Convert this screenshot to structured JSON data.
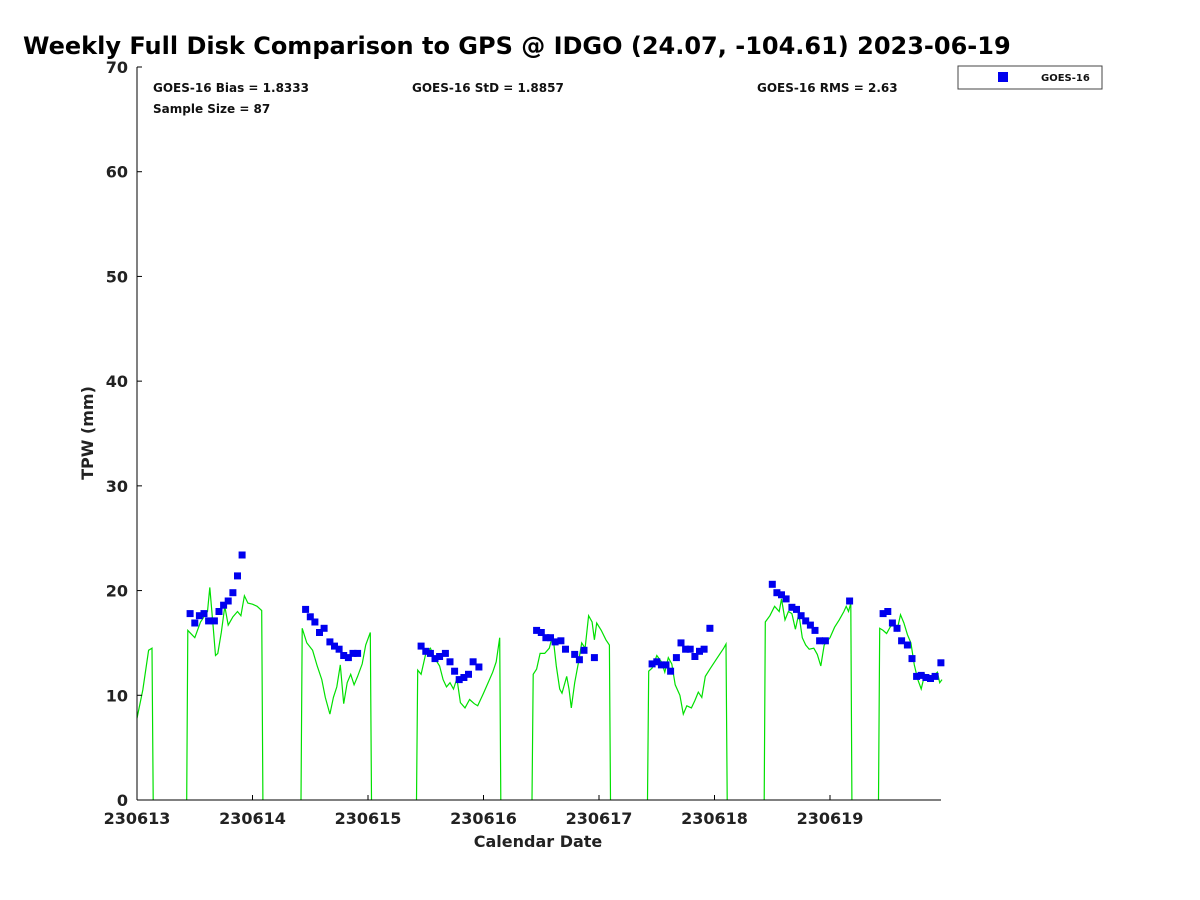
{
  "chart_data": {
    "type": "scatter",
    "title": "Weekly Full Disk Comparison to GPS @ IDGO (24.07, -104.61) 2023-06-19",
    "xlabel": "Calendar Date",
    "ylabel": "TPW (mm)",
    "xlim": [
      0,
      7
    ],
    "ylim": [
      0,
      70
    ],
    "y_ticks": [
      0,
      10,
      20,
      30,
      40,
      50,
      60,
      70
    ],
    "x_ticks": [
      {
        "value": 0,
        "label": "230613"
      },
      {
        "value": 1,
        "label": "230614"
      },
      {
        "value": 2,
        "label": "230615"
      },
      {
        "value": 3,
        "label": "230616"
      },
      {
        "value": 4,
        "label": "230617"
      },
      {
        "value": 5,
        "label": "230618"
      },
      {
        "value": 6,
        "label": "230619"
      }
    ],
    "stats": {
      "bias": "GOES-16 Bias = 1.8333",
      "std": "GOES-16 StD = 1.8857",
      "rms": "GOES-16 RMS = 2.63",
      "sample_size": "Sample Size = 87"
    },
    "legend": [
      {
        "name": "GOES-16",
        "color": "#0000ee",
        "marker": "square"
      }
    ],
    "legend_placement": "top-right outside plot",
    "series": [
      {
        "name": "GOES-16",
        "color": "#0000ee",
        "marker": "square",
        "points": [
          [
            0.46,
            17.8
          ],
          [
            0.5,
            16.9
          ],
          [
            0.54,
            17.6
          ],
          [
            0.58,
            17.8
          ],
          [
            0.62,
            17.1
          ],
          [
            0.67,
            17.1
          ],
          [
            0.71,
            18.0
          ],
          [
            0.75,
            18.6
          ],
          [
            0.79,
            19.0
          ],
          [
            0.83,
            19.8
          ],
          [
            0.87,
            21.4
          ],
          [
            0.91,
            23.4
          ],
          [
            1.46,
            18.2
          ],
          [
            1.5,
            17.5
          ],
          [
            1.54,
            17.0
          ],
          [
            1.58,
            16.0
          ],
          [
            1.62,
            16.4
          ],
          [
            1.67,
            15.1
          ],
          [
            1.71,
            14.7
          ],
          [
            1.75,
            14.4
          ],
          [
            1.79,
            13.8
          ],
          [
            1.83,
            13.6
          ],
          [
            1.87,
            14.0
          ],
          [
            1.91,
            14.0
          ],
          [
            2.46,
            14.7
          ],
          [
            2.5,
            14.2
          ],
          [
            2.54,
            14.0
          ],
          [
            2.58,
            13.5
          ],
          [
            2.62,
            13.7
          ],
          [
            2.67,
            14.0
          ],
          [
            2.71,
            13.2
          ],
          [
            2.75,
            12.3
          ],
          [
            2.79,
            11.5
          ],
          [
            2.83,
            11.7
          ],
          [
            2.87,
            12.0
          ],
          [
            2.91,
            13.2
          ],
          [
            2.96,
            12.7
          ],
          [
            3.46,
            16.2
          ],
          [
            3.5,
            16.0
          ],
          [
            3.54,
            15.5
          ],
          [
            3.58,
            15.5
          ],
          [
            3.62,
            15.1
          ],
          [
            3.67,
            15.2
          ],
          [
            3.71,
            14.4
          ],
          [
            3.79,
            13.9
          ],
          [
            3.83,
            13.4
          ],
          [
            3.87,
            14.3
          ],
          [
            3.96,
            13.6
          ],
          [
            4.46,
            13.0
          ],
          [
            4.5,
            13.2
          ],
          [
            4.54,
            12.9
          ],
          [
            4.58,
            12.9
          ],
          [
            4.62,
            12.3
          ],
          [
            4.67,
            13.6
          ],
          [
            4.71,
            15.0
          ],
          [
            4.75,
            14.4
          ],
          [
            4.79,
            14.4
          ],
          [
            4.83,
            13.7
          ],
          [
            4.87,
            14.2
          ],
          [
            4.91,
            14.4
          ],
          [
            4.96,
            16.4
          ],
          [
            5.5,
            20.6
          ],
          [
            5.54,
            19.8
          ],
          [
            5.58,
            19.6
          ],
          [
            5.62,
            19.2
          ],
          [
            5.67,
            18.4
          ],
          [
            5.71,
            18.2
          ],
          [
            5.75,
            17.6
          ],
          [
            5.79,
            17.1
          ],
          [
            5.83,
            16.7
          ],
          [
            5.87,
            16.2
          ],
          [
            5.91,
            15.2
          ],
          [
            5.96,
            15.2
          ],
          [
            6.17,
            19.0
          ],
          [
            6.46,
            17.8
          ],
          [
            6.5,
            18.0
          ],
          [
            6.54,
            16.9
          ],
          [
            6.58,
            16.4
          ],
          [
            6.62,
            15.2
          ],
          [
            6.67,
            14.8
          ],
          [
            6.71,
            13.5
          ],
          [
            6.75,
            11.8
          ],
          [
            6.79,
            11.9
          ],
          [
            6.83,
            11.7
          ],
          [
            6.87,
            11.6
          ],
          [
            6.91,
            11.8
          ],
          [
            6.96,
            13.1
          ]
        ]
      },
      {
        "name": "GPS",
        "color": "#00e000",
        "marker": "line",
        "segments": [
          [
            [
              0.0,
              7.8
            ],
            [
              0.05,
              10.5
            ],
            [
              0.1,
              14.3
            ],
            [
              0.13,
              14.5
            ],
            [
              0.14,
              0.0
            ]
          ],
          [
            [
              0.43,
              0.0
            ],
            [
              0.44,
              16.2
            ],
            [
              0.5,
              15.5
            ],
            [
              0.55,
              17.0
            ],
            [
              0.58,
              17.5
            ],
            [
              0.61,
              18.0
            ],
            [
              0.63,
              20.3
            ],
            [
              0.66,
              16.5
            ],
            [
              0.68,
              13.8
            ],
            [
              0.7,
              14.0
            ],
            [
              0.73,
              16.0
            ],
            [
              0.76,
              18.5
            ],
            [
              0.79,
              16.7
            ],
            [
              0.83,
              17.5
            ],
            [
              0.87,
              18.0
            ],
            [
              0.9,
              17.6
            ],
            [
              0.93,
              19.5
            ],
            [
              0.96,
              18.8
            ],
            [
              1.0,
              18.7
            ],
            [
              1.04,
              18.5
            ],
            [
              1.08,
              18.1
            ],
            [
              1.09,
              0.0
            ]
          ],
          [
            [
              1.42,
              0.0
            ],
            [
              1.43,
              16.4
            ],
            [
              1.47,
              15.0
            ],
            [
              1.52,
              14.3
            ],
            [
              1.56,
              12.8
            ],
            [
              1.6,
              11.5
            ],
            [
              1.63,
              9.8
            ],
            [
              1.67,
              8.2
            ],
            [
              1.7,
              9.8
            ],
            [
              1.73,
              10.8
            ],
            [
              1.76,
              12.9
            ],
            [
              1.79,
              9.2
            ],
            [
              1.82,
              11.2
            ],
            [
              1.85,
              12.0
            ],
            [
              1.88,
              11.0
            ],
            [
              1.91,
              11.8
            ],
            [
              1.95,
              13.0
            ],
            [
              1.98,
              14.8
            ],
            [
              2.02,
              16.0
            ],
            [
              2.03,
              0.0
            ]
          ],
          [
            [
              2.42,
              0.0
            ],
            [
              2.43,
              12.4
            ],
            [
              2.46,
              12.0
            ],
            [
              2.5,
              14.0
            ],
            [
              2.54,
              14.5
            ],
            [
              2.58,
              13.5
            ],
            [
              2.62,
              12.8
            ],
            [
              2.65,
              11.5
            ],
            [
              2.68,
              10.8
            ],
            [
              2.71,
              11.2
            ],
            [
              2.74,
              10.6
            ],
            [
              2.77,
              11.6
            ],
            [
              2.8,
              9.3
            ],
            [
              2.84,
              8.8
            ],
            [
              2.88,
              9.6
            ],
            [
              2.92,
              9.2
            ],
            [
              2.95,
              9.0
            ],
            [
              3.0,
              10.2
            ],
            [
              3.04,
              11.2
            ],
            [
              3.08,
              12.2
            ],
            [
              3.11,
              13.2
            ],
            [
              3.14,
              15.5
            ],
            [
              3.15,
              0.0
            ]
          ],
          [
            [
              3.42,
              0.0
            ],
            [
              3.43,
              12.0
            ],
            [
              3.46,
              12.5
            ],
            [
              3.49,
              14.0
            ],
            [
              3.53,
              14.0
            ],
            [
              3.57,
              14.5
            ],
            [
              3.6,
              15.8
            ],
            [
              3.63,
              12.8
            ],
            [
              3.66,
              10.6
            ],
            [
              3.68,
              10.2
            ],
            [
              3.72,
              11.8
            ],
            [
              3.74,
              10.6
            ],
            [
              3.76,
              8.8
            ],
            [
              3.79,
              11.2
            ],
            [
              3.82,
              13.0
            ],
            [
              3.85,
              15.0
            ],
            [
              3.88,
              14.5
            ],
            [
              3.91,
              17.6
            ],
            [
              3.94,
              17.0
            ],
            [
              3.96,
              15.3
            ],
            [
              3.98,
              16.9
            ],
            [
              4.02,
              16.2
            ],
            [
              4.06,
              15.3
            ],
            [
              4.09,
              14.8
            ],
            [
              4.1,
              0.0
            ]
          ],
          [
            [
              4.42,
              0.0
            ],
            [
              4.43,
              12.3
            ],
            [
              4.46,
              12.6
            ],
            [
              4.5,
              13.8
            ],
            [
              4.54,
              13.2
            ],
            [
              4.57,
              12.2
            ],
            [
              4.6,
              13.6
            ],
            [
              4.63,
              13.0
            ],
            [
              4.66,
              11.0
            ],
            [
              4.7,
              10.0
            ],
            [
              4.73,
              8.2
            ],
            [
              4.76,
              9.0
            ],
            [
              4.8,
              8.8
            ],
            [
              4.83,
              9.5
            ],
            [
              4.86,
              10.3
            ],
            [
              4.89,
              9.8
            ],
            [
              4.92,
              11.8
            ],
            [
              4.96,
              12.5
            ],
            [
              5.02,
              13.5
            ],
            [
              5.08,
              14.5
            ],
            [
              5.1,
              14.9
            ],
            [
              5.11,
              0.0
            ]
          ],
          [
            [
              5.43,
              0.0
            ],
            [
              5.44,
              17.0
            ],
            [
              5.48,
              17.6
            ],
            [
              5.52,
              18.5
            ],
            [
              5.56,
              18.0
            ],
            [
              5.58,
              19.2
            ],
            [
              5.61,
              17.2
            ],
            [
              5.64,
              18.0
            ],
            [
              5.67,
              17.8
            ],
            [
              5.7,
              16.3
            ],
            [
              5.73,
              17.8
            ],
            [
              5.76,
              15.5
            ],
            [
              5.79,
              14.8
            ],
            [
              5.82,
              14.4
            ],
            [
              5.86,
              14.5
            ],
            [
              5.89,
              13.9
            ],
            [
              5.92,
              12.8
            ],
            [
              5.95,
              14.8
            ],
            [
              6.0,
              15.5
            ],
            [
              6.04,
              16.5
            ],
            [
              6.08,
              17.2
            ],
            [
              6.12,
              18.0
            ],
            [
              6.14,
              18.5
            ],
            [
              6.16,
              18.0
            ],
            [
              6.18,
              18.8
            ],
            [
              6.19,
              0.0
            ]
          ],
          [
            [
              6.42,
              0.0
            ],
            [
              6.43,
              16.4
            ],
            [
              6.46,
              16.2
            ],
            [
              6.49,
              15.9
            ],
            [
              6.52,
              16.5
            ],
            [
              6.55,
              16.9
            ],
            [
              6.58,
              16.2
            ],
            [
              6.61,
              17.7
            ],
            [
              6.64,
              16.9
            ],
            [
              6.67,
              15.8
            ],
            [
              6.7,
              15.0
            ],
            [
              6.73,
              12.9
            ],
            [
              6.76,
              11.5
            ],
            [
              6.79,
              10.6
            ],
            [
              6.82,
              12.0
            ],
            [
              6.85,
              11.6
            ],
            [
              6.88,
              11.9
            ],
            [
              6.91,
              12.0
            ],
            [
              6.93,
              12.2
            ],
            [
              6.95,
              11.2
            ],
            [
              6.97,
              11.5
            ]
          ]
        ]
      }
    ]
  }
}
